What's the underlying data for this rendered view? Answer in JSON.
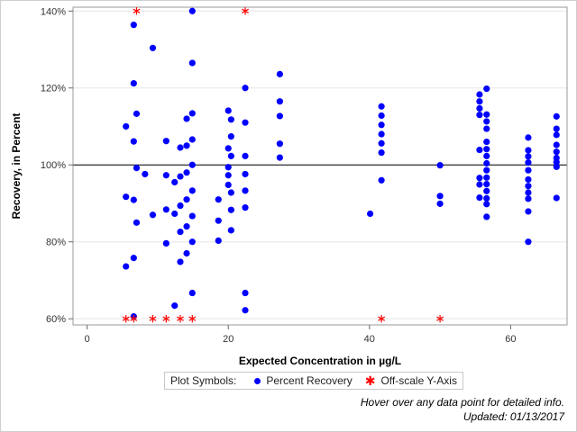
{
  "chart_data": {
    "type": "scatter",
    "title": "",
    "xlabel": "Expected Concentration in µg/L",
    "ylabel": "Recovery, in Percent",
    "xlim": [
      -2,
      68
    ],
    "ylim": [
      58.4,
      141
    ],
    "x_ticks": [
      {
        "value": 0,
        "label": "0"
      },
      {
        "value": 20,
        "label": "20"
      },
      {
        "value": 40,
        "label": "40"
      },
      {
        "value": 60,
        "label": "60"
      }
    ],
    "y_ticks": [
      {
        "value": 60,
        "label": "60%"
      },
      {
        "value": 80,
        "label": "80%"
      },
      {
        "value": 100,
        "label": "100%"
      },
      {
        "value": 120,
        "label": "120%"
      },
      {
        "value": 140,
        "label": "140%"
      }
    ],
    "grid": "horizontal",
    "reference_line_y": 100,
    "series": [
      {
        "name": "Percent Recovery",
        "marker": "circle",
        "color": "#0000ff",
        "points": [
          [
            5.5,
            110
          ],
          [
            5.5,
            91.7
          ],
          [
            5.5,
            73.6
          ],
          [
            6.6,
            136.4
          ],
          [
            6.6,
            121.2
          ],
          [
            6.6,
            106.1
          ],
          [
            6.6,
            90.9
          ],
          [
            6.6,
            75.8
          ],
          [
            6.6,
            60.6
          ],
          [
            7,
            113.3
          ],
          [
            7,
            99.2
          ],
          [
            7,
            85
          ],
          [
            8.2,
            97.6
          ],
          [
            9.3,
            130.4
          ],
          [
            9.3,
            87
          ],
          [
            11.2,
            106.2
          ],
          [
            11.2,
            97.3
          ],
          [
            11.2,
            88.4
          ],
          [
            11.2,
            79.6
          ],
          [
            12.4,
            95.5
          ],
          [
            12.4,
            87.3
          ],
          [
            12.4,
            63.4
          ],
          [
            13.2,
            104.5
          ],
          [
            13.2,
            97
          ],
          [
            13.2,
            89.4
          ],
          [
            13.2,
            82.6
          ],
          [
            13.2,
            74.8
          ],
          [
            14.1,
            112
          ],
          [
            14.1,
            105
          ],
          [
            14.1,
            98
          ],
          [
            14.1,
            91
          ],
          [
            14.1,
            84
          ],
          [
            14.1,
            77
          ],
          [
            14.9,
            140
          ],
          [
            14.9,
            126.5
          ],
          [
            14.9,
            113.4
          ],
          [
            14.9,
            106.6
          ],
          [
            14.9,
            100
          ],
          [
            14.9,
            93.3
          ],
          [
            14.9,
            86.7
          ],
          [
            14.9,
            80
          ],
          [
            14.9,
            66.7
          ],
          [
            18.6,
            91
          ],
          [
            18.6,
            85.5
          ],
          [
            18.6,
            80.3
          ],
          [
            20,
            114.1
          ],
          [
            20,
            104.3
          ],
          [
            20,
            99.4
          ],
          [
            20,
            97.3
          ],
          [
            20,
            94.8
          ],
          [
            20.4,
            111.8
          ],
          [
            20.4,
            107.4
          ],
          [
            20.4,
            102.3
          ],
          [
            20.4,
            92.8
          ],
          [
            20.4,
            88.3
          ],
          [
            20.4,
            83
          ],
          [
            22.4,
            120
          ],
          [
            22.4,
            111
          ],
          [
            22.4,
            102.3
          ],
          [
            22.4,
            97.6
          ],
          [
            22.4,
            93.3
          ],
          [
            22.4,
            88.9
          ],
          [
            22.4,
            66.7
          ],
          [
            22.4,
            62.2
          ],
          [
            27.3,
            123.6
          ],
          [
            27.3,
            116.5
          ],
          [
            27.3,
            112.7
          ],
          [
            27.3,
            105.5
          ],
          [
            27.3,
            101.9
          ],
          [
            40.1,
            87.3
          ],
          [
            41.7,
            115.2
          ],
          [
            41.7,
            112.8
          ],
          [
            41.7,
            110.4
          ],
          [
            41.7,
            108
          ],
          [
            41.7,
            105.6
          ],
          [
            41.7,
            103.2
          ],
          [
            41.7,
            96
          ],
          [
            50,
            99.9
          ],
          [
            50,
            91.9
          ],
          [
            50,
            89.9
          ],
          [
            55.6,
            118.3
          ],
          [
            55.6,
            116.5
          ],
          [
            55.6,
            114.7
          ],
          [
            55.6,
            113
          ],
          [
            55.6,
            103.9
          ],
          [
            55.6,
            96.6
          ],
          [
            55.6,
            94.9
          ],
          [
            55.6,
            91.5
          ],
          [
            56.6,
            119.8
          ],
          [
            56.6,
            113.1
          ],
          [
            56.6,
            111.3
          ],
          [
            56.6,
            109.4
          ],
          [
            56.6,
            106
          ],
          [
            56.6,
            104.1
          ],
          [
            56.6,
            102.3
          ],
          [
            56.6,
            100.4
          ],
          [
            56.6,
            98.6
          ],
          [
            56.6,
            96.7
          ],
          [
            56.6,
            95
          ],
          [
            56.6,
            93.2
          ],
          [
            56.6,
            91.3
          ],
          [
            56.6,
            89.8
          ],
          [
            56.6,
            86.5
          ],
          [
            62.5,
            107.1
          ],
          [
            62.5,
            103.8
          ],
          [
            62.5,
            102.2
          ],
          [
            62.5,
            100.6
          ],
          [
            62.5,
            98.6
          ],
          [
            62.5,
            96.2
          ],
          [
            62.5,
            94.5
          ],
          [
            62.5,
            92.8
          ],
          [
            62.5,
            91.2
          ],
          [
            62.5,
            87.9
          ],
          [
            62.5,
            80
          ],
          [
            66.5,
            112.6
          ],
          [
            66.5,
            109.4
          ],
          [
            66.5,
            107.8
          ],
          [
            66.5,
            105.2
          ],
          [
            66.5,
            103.4
          ],
          [
            66.5,
            101.8
          ],
          [
            66.5,
            100.7
          ],
          [
            66.5,
            99.5
          ],
          [
            66.5,
            91.4
          ]
        ]
      },
      {
        "name": "Off-scale Y-Axis",
        "marker": "asterisk",
        "color": "#ff0000",
        "points": [
          [
            7,
            140
          ],
          [
            22.4,
            140
          ],
          [
            5.5,
            60
          ],
          [
            6.6,
            60
          ],
          [
            9.3,
            60
          ],
          [
            11.2,
            60
          ],
          [
            13.2,
            60
          ],
          [
            14.9,
            60
          ],
          [
            41.7,
            60
          ],
          [
            50,
            60
          ]
        ]
      }
    ]
  },
  "legend": {
    "title": "Plot Symbols:",
    "items": [
      {
        "label": "Percent Recovery",
        "marker": "circle",
        "color": "#0000ff"
      },
      {
        "label": "Off-scale Y-Axis",
        "marker": "asterisk",
        "color": "#ff0000"
      }
    ]
  },
  "footnote": {
    "line1": "Hover over any data point for detailed info.",
    "line2": "Updated: 01/13/2017"
  }
}
